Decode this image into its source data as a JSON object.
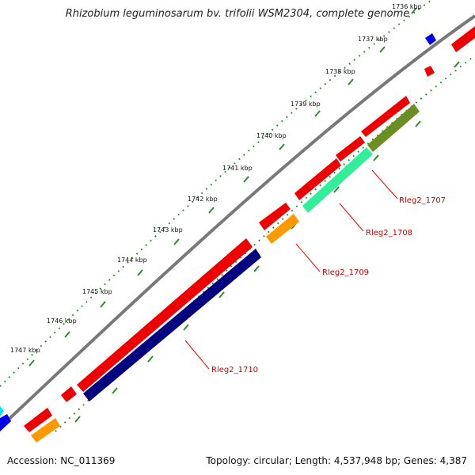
{
  "title": "Rhizobium leguminosarum bv. trifolii WSM2304, complete genome",
  "accession_label": "Accession: NC_011369",
  "summary_label": "Topology: circular; Length: 4,537,948 bp; Genes: 4,387",
  "ticks": [
    "1736 kbp",
    "1737 kbp",
    "1738 kbp",
    "1739 kbp",
    "1740 kbp",
    "1741 kbp",
    "1742 kbp",
    "1743 kbp",
    "1744 kbp",
    "1745 kbp",
    "1746 kbp",
    "1747 kbp"
  ],
  "gene_labels": [
    "Rleg2_1707",
    "Rleg2_1708",
    "Rleg2_1709",
    "Rleg2_1710"
  ],
  "colors": {
    "backbone": "#888888",
    "tick_dots": "#2e8b2e",
    "forward_cds": "#ee0000",
    "red_label": "#cc0000",
    "orange_gene": "#ff9900",
    "navy_gene": "#000080",
    "green_gene": "#33ee99",
    "olive_gene": "#6b8e23",
    "blue_gene": "#0000ee",
    "cyan_gene": "#00e5ee"
  }
}
